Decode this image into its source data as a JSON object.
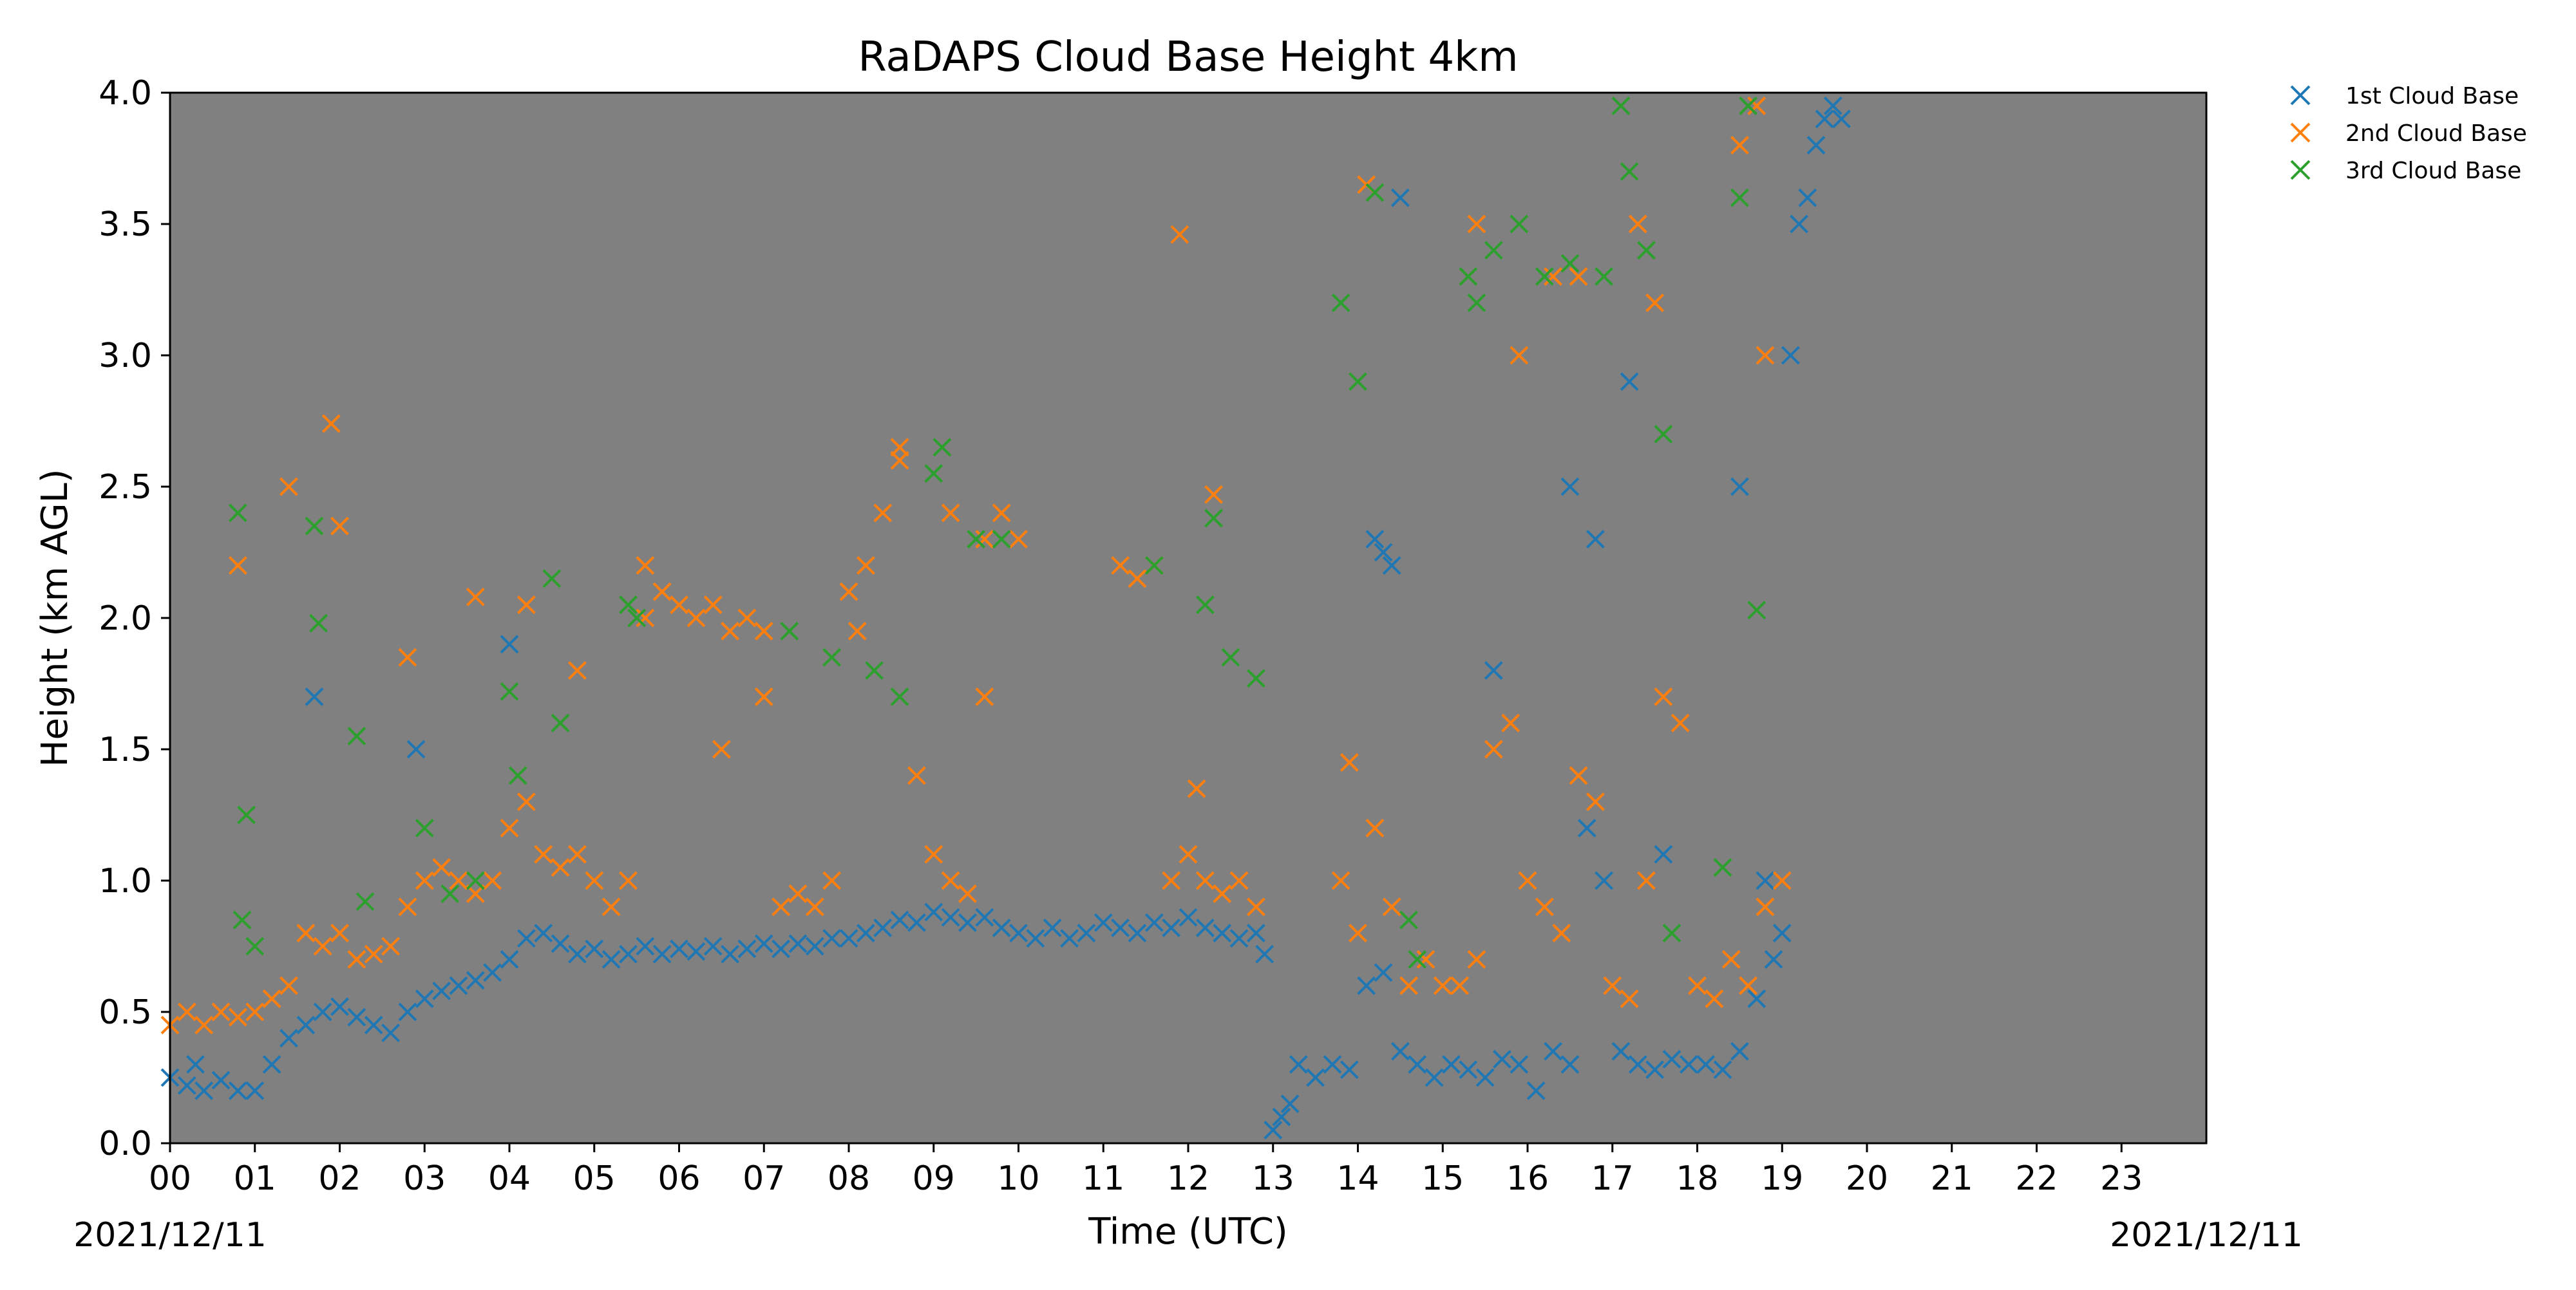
{
  "chart_data": {
    "type": "scatter",
    "title": "RaDAPS Cloud Base Height 4km",
    "xlabel": "Time (UTC)",
    "ylabel": "Height (km AGL)",
    "xlim": [
      0,
      24
    ],
    "ylim": [
      0,
      4.0
    ],
    "background_color": "#808080",
    "grid": false,
    "legend_placement": "outside-top-right",
    "marker": "x",
    "x_tick_labels": [
      "00",
      "01",
      "02",
      "03",
      "04",
      "05",
      "06",
      "07",
      "08",
      "09",
      "10",
      "11",
      "12",
      "13",
      "14",
      "15",
      "16",
      "17",
      "18",
      "19",
      "20",
      "21",
      "22",
      "23"
    ],
    "y_tick_labels": [
      "0.0",
      "0.5",
      "1.0",
      "1.5",
      "2.0",
      "2.5",
      "3.0",
      "3.5",
      "4.0"
    ],
    "date_left": "2021/12/11",
    "date_right": "2021/12/11",
    "series": [
      {
        "name": "1st Cloud Base",
        "color": "#1f77b4",
        "x": [
          0.0,
          0.2,
          0.4,
          0.6,
          0.8,
          1.0,
          1.2,
          1.4,
          1.6,
          1.8,
          2.0,
          2.2,
          2.4,
          2.6,
          2.8,
          3.0,
          3.2,
          3.4,
          3.6,
          3.8,
          4.0,
          4.2,
          4.4,
          4.6,
          4.8,
          5.0,
          5.2,
          5.4,
          5.6,
          5.8,
          6.0,
          6.2,
          6.4,
          6.6,
          6.8,
          7.0,
          7.2,
          7.4,
          7.6,
          7.8,
          8.0,
          8.2,
          8.4,
          8.6,
          8.8,
          9.0,
          9.2,
          9.4,
          9.6,
          9.8,
          10.0,
          10.2,
          10.4,
          10.6,
          10.8,
          11.0,
          11.2,
          11.4,
          11.6,
          11.8,
          12.0,
          12.2,
          12.4,
          12.6,
          12.8,
          12.9,
          13.1,
          13.3,
          13.5,
          13.7,
          13.9,
          14.1,
          14.3,
          14.5,
          14.7,
          14.9,
          15.1,
          15.3,
          15.5,
          15.7,
          15.9,
          16.1,
          16.3,
          16.5,
          16.7,
          16.9,
          17.1,
          17.3,
          17.5,
          17.7,
          17.9,
          18.1,
          18.3,
          18.5,
          18.7,
          18.9,
          19.0,
          19.2,
          19.4,
          19.6,
          19.7,
          14.2,
          14.3,
          14.4,
          14.5,
          15.6,
          16.5,
          16.8,
          17.2,
          17.6,
          18.5,
          18.8,
          19.1,
          19.3,
          19.5,
          11.9,
          0.3,
          1.7,
          2.9,
          4.0,
          13.0,
          13.2
        ],
        "y": [
          0.25,
          0.22,
          0.2,
          0.24,
          0.2,
          0.2,
          0.3,
          0.4,
          0.45,
          0.5,
          0.52,
          0.48,
          0.45,
          0.42,
          0.5,
          0.55,
          0.58,
          0.6,
          0.62,
          0.65,
          0.7,
          0.78,
          0.8,
          0.76,
          0.72,
          0.74,
          0.7,
          0.72,
          0.75,
          0.72,
          0.74,
          0.73,
          0.75,
          0.72,
          0.74,
          0.76,
          0.74,
          0.76,
          0.75,
          0.78,
          0.78,
          0.8,
          0.82,
          0.85,
          0.84,
          0.88,
          0.86,
          0.84,
          0.86,
          0.82,
          0.8,
          0.78,
          0.82,
          0.78,
          0.8,
          0.84,
          0.82,
          0.8,
          0.84,
          0.82,
          0.86,
          0.82,
          0.8,
          0.78,
          0.8,
          0.72,
          0.1,
          0.3,
          0.25,
          0.3,
          0.28,
          0.6,
          0.65,
          0.35,
          0.3,
          0.25,
          0.3,
          0.28,
          0.25,
          0.32,
          0.3,
          0.2,
          0.35,
          0.3,
          1.2,
          1.0,
          0.35,
          0.3,
          0.28,
          0.32,
          0.3,
          0.3,
          0.28,
          0.35,
          0.55,
          0.7,
          0.8,
          3.5,
          3.8,
          3.95,
          3.9,
          2.3,
          2.25,
          2.2,
          3.6,
          1.8,
          2.5,
          2.3,
          2.9,
          1.1,
          2.5,
          1.0,
          3.0,
          3.6,
          3.9,
          3.46,
          0.3,
          1.7,
          1.5,
          1.9,
          0.05,
          0.15
        ]
      },
      {
        "name": "2nd Cloud Base",
        "color": "#ff7f0e",
        "x": [
          0.0,
          0.2,
          0.4,
          0.6,
          0.8,
          1.0,
          1.2,
          1.4,
          1.6,
          1.8,
          2.0,
          2.2,
          2.4,
          2.6,
          2.8,
          3.0,
          3.2,
          3.4,
          3.6,
          3.8,
          4.0,
          4.2,
          4.4,
          4.6,
          4.8,
          5.0,
          5.2,
          5.4,
          5.6,
          5.8,
          6.0,
          6.2,
          6.4,
          6.6,
          6.8,
          7.0,
          7.2,
          7.4,
          7.6,
          7.8,
          8.0,
          8.2,
          8.4,
          8.6,
          8.8,
          9.0,
          9.2,
          9.4,
          9.6,
          9.8,
          10.0,
          11.2,
          11.4,
          11.6,
          11.8,
          12.0,
          12.2,
          12.4,
          12.6,
          12.8,
          13.8,
          14.0,
          14.2,
          14.4,
          14.6,
          14.8,
          15.0,
          15.2,
          15.4,
          15.6,
          15.8,
          16.0,
          16.2,
          16.4,
          16.6,
          16.8,
          17.0,
          17.2,
          17.4,
          17.6,
          17.8,
          18.0,
          18.2,
          18.4,
          18.6,
          18.8,
          19.0,
          0.8,
          1.4,
          1.9,
          2.0,
          2.8,
          3.6,
          4.2,
          4.8,
          5.6,
          6.5,
          7.0,
          8.1,
          8.6,
          9.2,
          9.6,
          11.9,
          12.3,
          14.1,
          15.4,
          16.6,
          17.3,
          18.5,
          18.7,
          13.9,
          15.9,
          16.3,
          17.5,
          18.8,
          12.1
        ],
        "y": [
          0.45,
          0.5,
          0.45,
          0.5,
          0.48,
          0.5,
          0.55,
          0.6,
          0.8,
          0.75,
          0.8,
          0.7,
          0.72,
          0.75,
          0.9,
          1.0,
          1.05,
          1.0,
          0.95,
          1.0,
          1.2,
          1.3,
          1.1,
          1.05,
          1.1,
          1.0,
          0.9,
          1.0,
          2.0,
          2.1,
          2.05,
          2.0,
          2.05,
          1.95,
          2.0,
          1.95,
          0.9,
          0.95,
          0.9,
          1.0,
          2.1,
          2.2,
          2.4,
          2.6,
          1.4,
          1.1,
          1.0,
          0.95,
          2.3,
          2.4,
          2.3,
          2.2,
          2.15,
          2.2,
          1.0,
          1.1,
          1.0,
          0.95,
          1.0,
          0.9,
          1.0,
          0.8,
          1.2,
          0.9,
          0.6,
          0.7,
          0.6,
          0.6,
          0.7,
          1.5,
          1.6,
          1.0,
          0.9,
          0.8,
          1.4,
          1.3,
          0.6,
          0.55,
          1.0,
          1.7,
          1.6,
          0.6,
          0.55,
          0.7,
          0.6,
          0.9,
          1.0,
          2.2,
          2.5,
          2.74,
          2.35,
          1.85,
          2.08,
          2.05,
          1.8,
          2.2,
          1.5,
          1.7,
          1.95,
          2.65,
          2.4,
          1.7,
          3.46,
          2.47,
          3.65,
          3.5,
          3.3,
          3.5,
          3.8,
          3.95,
          1.45,
          3.0,
          3.3,
          3.2,
          3.0,
          1.35
        ]
      },
      {
        "name": "3rd Cloud Base",
        "color": "#2ca02c",
        "x": [
          0.8,
          0.85,
          0.9,
          1.0,
          1.7,
          1.75,
          2.2,
          2.3,
          3.0,
          3.3,
          3.6,
          4.0,
          4.1,
          4.5,
          4.6,
          5.4,
          5.5,
          7.3,
          7.8,
          8.3,
          8.6,
          9.0,
          9.1,
          9.5,
          9.8,
          11.6,
          12.2,
          12.3,
          12.5,
          12.8,
          13.8,
          14.0,
          14.2,
          14.6,
          14.7,
          15.3,
          15.4,
          15.6,
          15.9,
          16.2,
          16.5,
          16.9,
          17.1,
          17.2,
          17.4,
          17.6,
          18.5,
          18.6,
          18.7,
          17.7,
          18.3
        ],
        "y": [
          2.4,
          0.85,
          1.25,
          0.75,
          2.35,
          1.98,
          1.55,
          0.92,
          1.2,
          0.95,
          1.0,
          1.72,
          1.4,
          2.15,
          1.6,
          2.05,
          2.0,
          1.95,
          1.85,
          1.8,
          1.7,
          2.55,
          2.65,
          2.3,
          2.3,
          2.2,
          2.05,
          2.38,
          1.85,
          1.77,
          3.2,
          2.9,
          3.62,
          0.85,
          0.7,
          3.3,
          3.2,
          3.4,
          3.5,
          3.3,
          3.35,
          3.3,
          3.95,
          3.7,
          3.4,
          2.7,
          3.6,
          3.95,
          2.03,
          0.8,
          1.05
        ]
      }
    ]
  }
}
